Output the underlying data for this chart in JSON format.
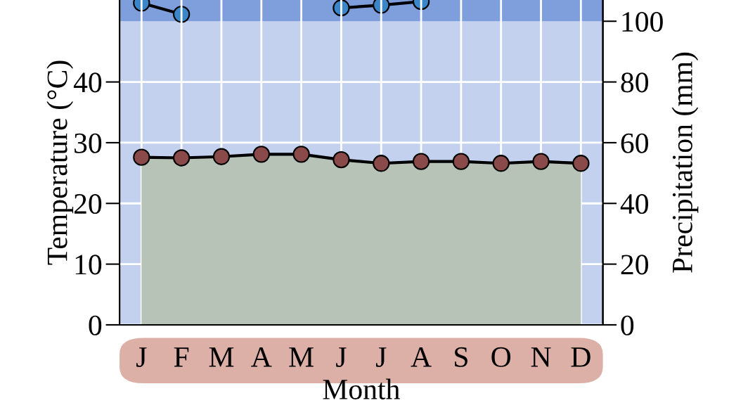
{
  "chart_data": {
    "type": "line",
    "xlabel": "Month",
    "ylabel": "Temperature (°C)",
    "y2label": "Precipitation (mm)",
    "categories": [
      "J",
      "F",
      "M",
      "A",
      "M",
      "J",
      "J",
      "A",
      "S",
      "O",
      "N",
      "D"
    ],
    "series": [
      {
        "type": "area",
        "color": "#b7c3b6",
        "colors": [
          "#8b4a4a",
          "#8b4a4a",
          "#8b4a4a",
          "#8b4a4a",
          "#8b4a4a",
          "#8b4a4a",
          "#8b4a4a",
          "#8b4a4a",
          "#8b4a4a",
          "#8b4a4a",
          "#8b4a4a",
          "#8b4a4a"
        ],
        "values": [
          27.6,
          27.5,
          27.7,
          28.1,
          28.1,
          27.2,
          26.6,
          26.9,
          26.9,
          26.6,
          26.9,
          26.6
        ]
      },
      {
        "axis": "y2",
        "color": "#3a86c8",
        "values": [
          106,
          102.3,
          null,
          null,
          null,
          104.4,
          105.3,
          106.5,
          null,
          null,
          null,
          null
        ]
      }
    ],
    "ylim": [
      0,
      53.5
    ],
    "yticks": [
      0,
      10,
      20,
      30,
      40
    ],
    "y2lim": [
      0,
      107
    ],
    "y2ticks": [
      0,
      20,
      40,
      60,
      80,
      100
    ],
    "bands": [
      {
        "axis": "y2",
        "from": 0,
        "to": 100,
        "color": "#c3d1ef"
      },
      {
        "axis": "y2",
        "from": 100,
        "to": 107,
        "color": "#7f9fdc"
      }
    ],
    "grid": true,
    "marker": "circle",
    "line_style": "solid",
    "legend": false
  }
}
